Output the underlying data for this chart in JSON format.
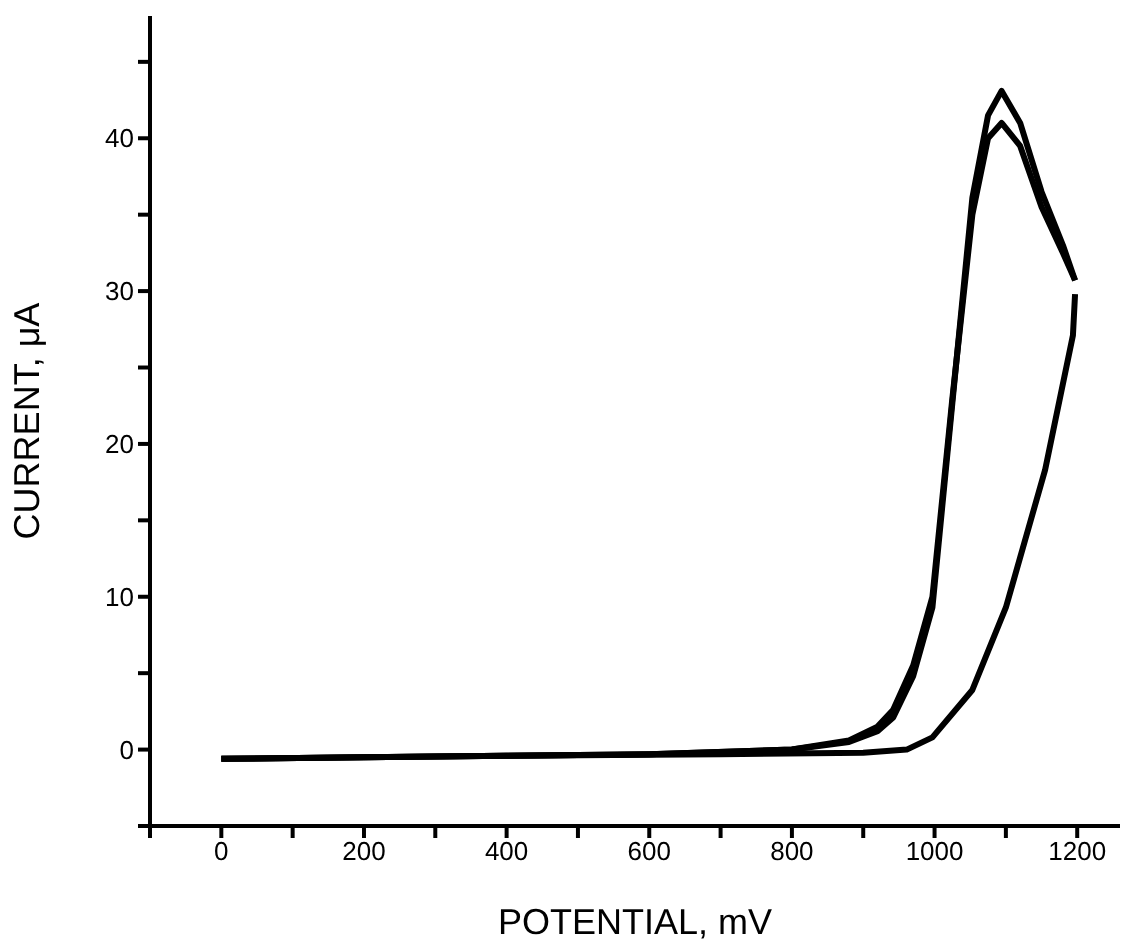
{
  "chart_data": {
    "type": "line",
    "xlabel": "POTENTIAL, mV",
    "ylabel": "CURRENT, μA",
    "xlim": [
      -100,
      1260
    ],
    "ylim": [
      -5,
      48
    ],
    "xticks": [
      {
        "value": -100,
        "label": null
      },
      0,
      {
        "value": 100,
        "label": null
      },
      200,
      {
        "value": 300,
        "label": null
      },
      400,
      {
        "value": 500,
        "label": null
      },
      600,
      {
        "value": 700,
        "label": null
      },
      800,
      {
        "value": 900,
        "label": null
      },
      1000,
      {
        "value": 1100,
        "label": null
      },
      1200
    ],
    "yticks": [
      {
        "value": -5,
        "label": null
      },
      0,
      {
        "value": 5,
        "label": null
      },
      10,
      {
        "value": 15,
        "label": null
      },
      20,
      {
        "value": 25,
        "label": null
      },
      30,
      {
        "value": 35,
        "label": null
      },
      40,
      {
        "value": 45,
        "label": null
      }
    ],
    "grid": false,
    "legend": false,
    "marker": "none",
    "line_style": "solid",
    "series": [
      {
        "color": "#000000",
        "x": [
          0,
          200,
          400,
          600,
          800,
          880,
          920,
          942,
          970,
          997,
          1025,
          1053,
          1075,
          1094,
          1120,
          1150,
          1180,
          1197
        ],
        "values": [
          -0.6,
          -0.5,
          -0.4,
          -0.3,
          0,
          0.5,
          1.2,
          2.1,
          4.8,
          9.3,
          22.7,
          36.1,
          41.5,
          43.1,
          41,
          36.5,
          33,
          30.7
        ]
      },
      {
        "color": "#000000",
        "x": [
          0,
          200,
          400,
          600,
          800,
          880,
          920,
          942,
          970,
          997,
          1025,
          1053,
          1075,
          1094,
          1120,
          1150,
          1180,
          1197
        ],
        "values": [
          -0.6,
          -0.5,
          -0.4,
          -0.3,
          0,
          0.6,
          1.5,
          2.6,
          5.5,
          10,
          23,
          35,
          40,
          41,
          39.5,
          35.5,
          32.5,
          30.7
        ]
      },
      {
        "color": "#000000",
        "x": [
          0,
          200,
          400,
          700,
          900,
          961,
          997,
          1053,
          1100,
          1155,
          1194,
          1197
        ],
        "values": [
          -0.6,
          -0.5,
          -0.4,
          -0.3,
          -0.2,
          0,
          0.8,
          3.9,
          9.3,
          18.3,
          27.1,
          29.8
        ]
      }
    ]
  }
}
